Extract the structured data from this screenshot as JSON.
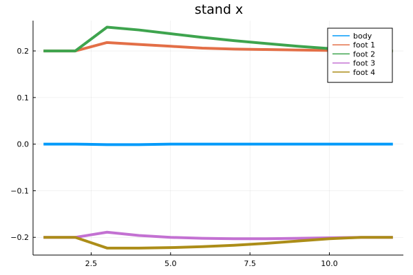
{
  "chart_data": {
    "type": "line",
    "title": "stand x",
    "xlabel": "",
    "ylabel": "",
    "xlim": [
      0.67,
      12.33
    ],
    "ylim": [
      -0.238,
      0.265
    ],
    "xticks": [
      2.5,
      5.0,
      7.5,
      10.0
    ],
    "xtick_labels": [
      "2.5",
      "5.0",
      "7.5",
      "10.0"
    ],
    "yticks": [
      -0.2,
      -0.1,
      0.0,
      0.1,
      0.2
    ],
    "ytick_labels": [
      "−0.2",
      "−0.1",
      "0.0",
      "0.1",
      "0.2"
    ],
    "grid": true,
    "legend_position": "top-right",
    "x": [
      1,
      2,
      3,
      4,
      5,
      6,
      7,
      8,
      9,
      10,
      11,
      12
    ],
    "series": [
      {
        "name": "body",
        "color": "#009AFA",
        "values": [
          0.0,
          0.0,
          -0.001,
          -0.001,
          0.0,
          0.0,
          0.0,
          0.0,
          0.0,
          0.0,
          0.0,
          0.0
        ]
      },
      {
        "name": "foot 1",
        "color": "#E36F47",
        "values": [
          0.2,
          0.2,
          0.218,
          0.214,
          0.21,
          0.206,
          0.204,
          0.203,
          0.202,
          0.201,
          0.2,
          0.2
        ]
      },
      {
        "name": "foot 2",
        "color": "#3EA44E",
        "values": [
          0.2,
          0.2,
          0.251,
          0.245,
          0.237,
          0.229,
          0.222,
          0.216,
          0.21,
          0.205,
          0.201,
          0.2
        ]
      },
      {
        "name": "foot 3",
        "color": "#C371D2",
        "values": [
          -0.2,
          -0.2,
          -0.189,
          -0.196,
          -0.2,
          -0.202,
          -0.203,
          -0.203,
          -0.202,
          -0.201,
          -0.2,
          -0.2
        ]
      },
      {
        "name": "foot 4",
        "color": "#AC8D18",
        "values": [
          -0.2,
          -0.2,
          -0.223,
          -0.223,
          -0.222,
          -0.22,
          -0.217,
          -0.213,
          -0.208,
          -0.203,
          -0.2,
          -0.2
        ]
      }
    ]
  }
}
